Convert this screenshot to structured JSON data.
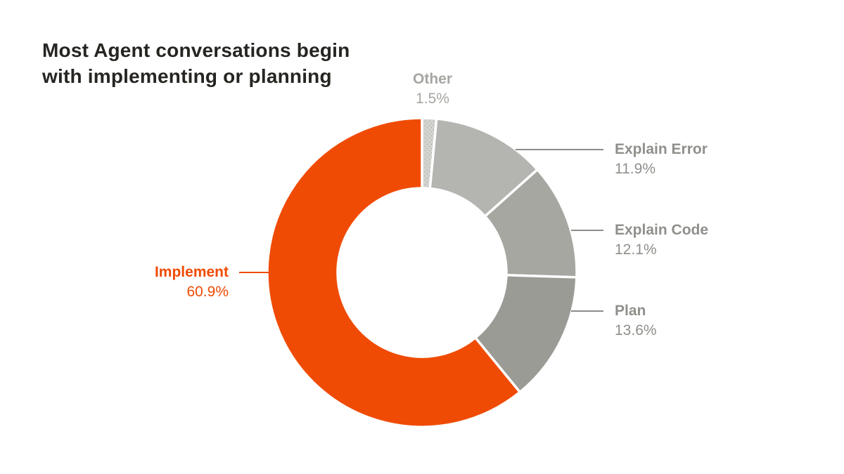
{
  "title": {
    "line1": "Most Agent conversations begin",
    "line2": "with implementing or planning"
  },
  "colors": {
    "background": "#ffffff",
    "title_text": "#262521",
    "accent_orange": "#f04b04",
    "muted_label_gray": "#8f8f8b",
    "other_label_gray": "#a6a6a2",
    "leader_line_gray": "#8c8c88",
    "segment_divider_white": "#ffffff"
  },
  "chart_data": {
    "type": "pie",
    "subtype": "donut",
    "title": "Most Agent conversations begin with implementing or planning",
    "legend_position": "outside-callouts",
    "start_angle_deg_from_top": 0,
    "direction": "clockwise",
    "order_note": "segments listed clockwise from 12 o'clock",
    "total": 100,
    "segments": [
      {
        "label": "Other",
        "value": 1.5,
        "display": "1.5%",
        "color": "#d3d3d0",
        "pattern": "dots",
        "pattern_dot_color": "#acaca9",
        "label_color": "#a6a6a2",
        "line_color": null,
        "callout_side": "top"
      },
      {
        "label": "Explain Error",
        "value": 11.9,
        "display": "11.9%",
        "color": "#b4b4b1",
        "pattern": null,
        "pattern_dot_color": null,
        "label_color": "#8f8f8b",
        "line_color": "#8c8c88",
        "callout_side": "right"
      },
      {
        "label": "Explain Code",
        "value": 12.1,
        "display": "12.1%",
        "color": "#a7a7a2",
        "pattern": null,
        "pattern_dot_color": null,
        "label_color": "#8f8f8b",
        "line_color": "#8c8c88",
        "callout_side": "right"
      },
      {
        "label": "Plan",
        "value": 13.6,
        "display": "13.6%",
        "color": "#9b9b96",
        "pattern": null,
        "pattern_dot_color": null,
        "label_color": "#8f8f8b",
        "line_color": "#8c8c88",
        "callout_side": "right"
      },
      {
        "label": "Implement",
        "value": 60.9,
        "display": "60.9%",
        "color": "#f04b04",
        "pattern": null,
        "pattern_dot_color": null,
        "label_color": "#f04b04",
        "line_color": "#f04b04",
        "callout_side": "left"
      }
    ]
  }
}
